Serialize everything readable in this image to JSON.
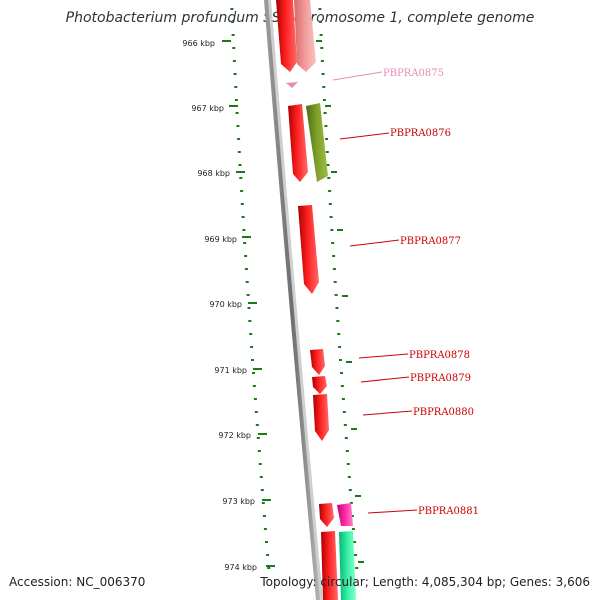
{
  "title": "Photobacterium profundum SS9 chromosome 1, complete genome",
  "footer": {
    "accession": "Accession: NC_006370",
    "summary": "Topology: circular; Length: 4,085,304 bp; Genes: 3,606"
  },
  "colors": {
    "tick": "#1a7a1a",
    "backbone": "#808080",
    "gene_label": "#cc0000",
    "gene_label_faded": "#e98ab5"
  },
  "ticks": [
    {
      "label": "966 kbp"
    },
    {
      "label": "967 kbp"
    },
    {
      "label": "968 kbp"
    },
    {
      "label": "969 kbp"
    },
    {
      "label": "970 kbp"
    },
    {
      "label": "971 kbp"
    },
    {
      "label": "972 kbp"
    },
    {
      "label": "973 kbp"
    },
    {
      "label": "974 kbp"
    }
  ],
  "genes": [
    {
      "label": "PBPRA0875",
      "color": "#e98ab5",
      "faded": true
    },
    {
      "label": "PBPRA0876",
      "color": "#cc0000",
      "faded": false
    },
    {
      "label": "PBPRA0877",
      "color": "#cc0000",
      "faded": false
    },
    {
      "label": "PBPRA0878",
      "color": "#cc0000",
      "faded": false
    },
    {
      "label": "PBPRA0879",
      "color": "#cc0000",
      "faded": false
    },
    {
      "label": "PBPRA0880",
      "color": "#cc0000",
      "faded": false
    },
    {
      "label": "PBPRA0881",
      "color": "#cc0000",
      "faded": false
    }
  ]
}
